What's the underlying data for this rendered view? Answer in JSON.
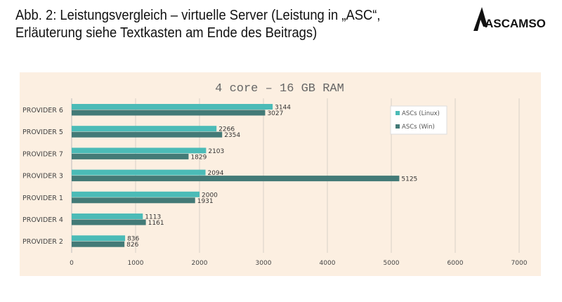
{
  "title_line1": "Abb. 2: Leistungsvergleich – virtuelle Server (Leistung in „ASC“,",
  "title_line2": "Erläuterung siehe Textkasten am Ende des Beitrags)",
  "logo": "ASCAMSO",
  "chart_data": {
    "type": "bar",
    "orientation": "horizontal",
    "title": "4 core – 16 GB RAM",
    "categories": [
      "PROVIDER 6",
      "PROVIDER 5",
      "PROVIDER 7",
      "PROVIDER 3",
      "PROVIDER 1",
      "PROVIDER 4",
      "PROVIDER 2"
    ],
    "series": [
      {
        "name": "ASCs (Linux)",
        "color": "#4bbbb7",
        "values": [
          3144,
          2266,
          2103,
          2094,
          2000,
          1113,
          836
        ]
      },
      {
        "name": "ASCs (Win)",
        "color": "#437a77",
        "values": [
          3027,
          2354,
          1829,
          5125,
          1931,
          1161,
          826
        ]
      }
    ],
    "xlim": [
      0,
      7000
    ],
    "xticks": [
      0,
      1000,
      2000,
      3000,
      4000,
      5000,
      6000,
      7000
    ],
    "grid": true,
    "legend": "top-right",
    "background": "#fcefe1"
  }
}
